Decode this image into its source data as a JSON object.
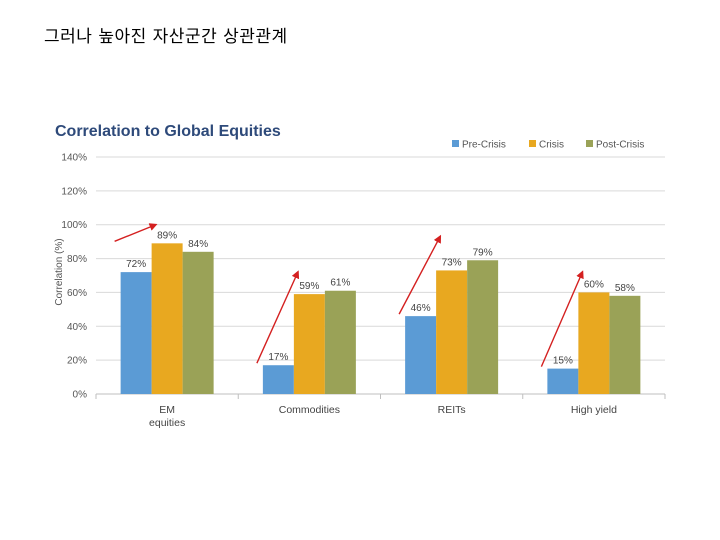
{
  "page": {
    "title": "그러나 높아진 자산군간 상관관계"
  },
  "colors": {
    "title": "#2e4a7a",
    "grid": "#d9d9d9",
    "axis": "#bfbfbf",
    "arrow": "#d42020"
  },
  "chart_data": {
    "type": "bar",
    "title": "Correlation to Global Equities",
    "xlabel": "",
    "ylabel": "Correlation (%)",
    "ylim": [
      0,
      140
    ],
    "yticks": [
      0,
      20,
      40,
      60,
      80,
      100,
      120,
      140
    ],
    "ytick_suffix": "%",
    "grid": true,
    "legend_position": "top-right",
    "categories": [
      [
        "EM",
        "equities"
      ],
      [
        "Commodities"
      ],
      [
        "REITs"
      ],
      [
        "High yield"
      ]
    ],
    "series": [
      {
        "name": "Pre-Crisis",
        "color": "#5b9bd5",
        "values": [
          72,
          17,
          46,
          15
        ],
        "labels": [
          "72%",
          "17%",
          "46%",
          "15%"
        ]
      },
      {
        "name": "Crisis",
        "color": "#e8a820",
        "values": [
          89,
          59,
          73,
          60
        ],
        "labels": [
          "89%",
          "59%",
          "73%",
          "60%"
        ]
      },
      {
        "name": "Post-Crisis",
        "color": "#9aa257",
        "values": [
          84,
          61,
          79,
          58
        ],
        "labels": [
          "84%",
          "61%",
          "79%",
          "58%"
        ]
      }
    ],
    "annotations": [
      {
        "type": "arrow",
        "category": 0,
        "from_value": 89,
        "to_value": 100
      },
      {
        "type": "arrow",
        "category": 1,
        "from_value": 17,
        "to_value": 72
      },
      {
        "type": "arrow",
        "category": 2,
        "from_value": 46,
        "to_value": 93
      },
      {
        "type": "arrow",
        "category": 3,
        "from_value": 15,
        "to_value": 72
      }
    ]
  }
}
